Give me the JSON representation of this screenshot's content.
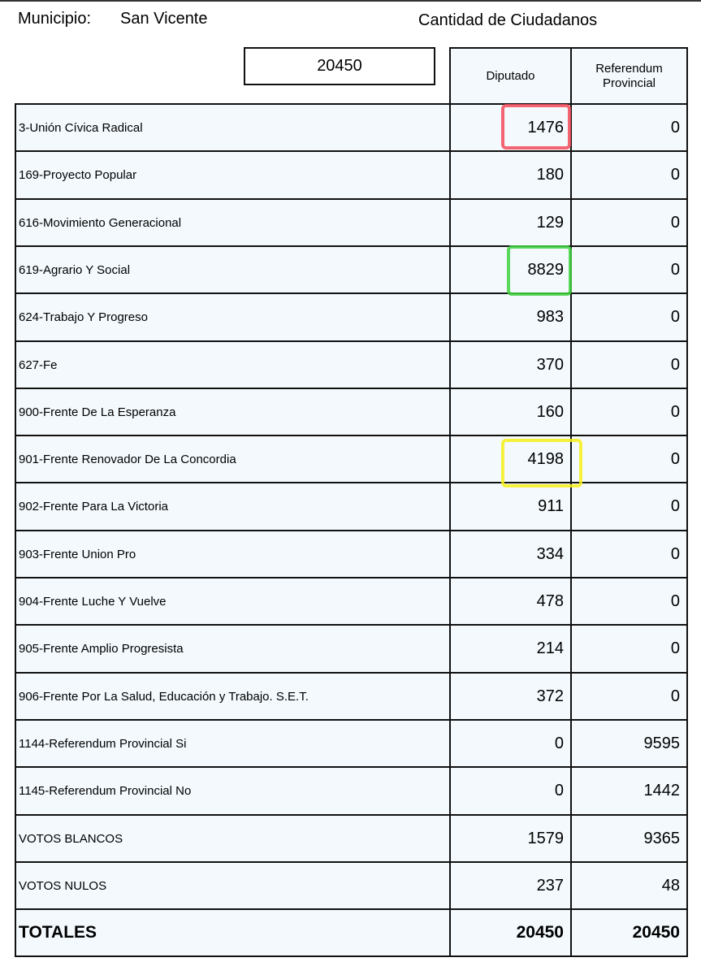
{
  "header": {
    "municipio_label": "Municipio:",
    "municipio": "San Vicente",
    "cantidad_label": "Cantidad de Ciudadanos",
    "cantidad": 20450
  },
  "table": {
    "columns": [
      "Diputado",
      "Referendum Provincial"
    ],
    "rows": [
      [
        "3-Unión Cívica Radical",
        1476,
        0
      ],
      [
        "169-Proyecto Popular",
        180,
        0
      ],
      [
        "616-Movimiento Generacional",
        129,
        0
      ],
      [
        "619-Agrario Y Social",
        8829,
        0
      ],
      [
        "624-Trabajo Y Progreso",
        983,
        0
      ],
      [
        "627-Fe",
        370,
        0
      ],
      [
        "900-Frente De La Esperanza",
        160,
        0
      ],
      [
        "901-Frente Renovador De La Concordia",
        4198,
        0
      ],
      [
        "902-Frente Para La Victoria",
        911,
        0
      ],
      [
        "903-Frente Union Pro",
        334,
        0
      ],
      [
        "904-Frente Luche Y Vuelve",
        478,
        0
      ],
      [
        "905-Frente Amplio Progresista",
        214,
        0
      ],
      [
        "906-Frente Por La Salud, Educación y Trabajo.  S.E.T.",
        372,
        0
      ],
      [
        "1144-Referendum Provincial Si",
        0,
        9595
      ],
      [
        "1145-Referendum Provincial No",
        0,
        1442
      ],
      [
        "VOTOS BLANCOS",
        1579,
        9365
      ],
      [
        "VOTOS NULOS",
        237,
        48
      ]
    ],
    "totals": [
      "TOTALES",
      20450,
      20450
    ]
  }
}
